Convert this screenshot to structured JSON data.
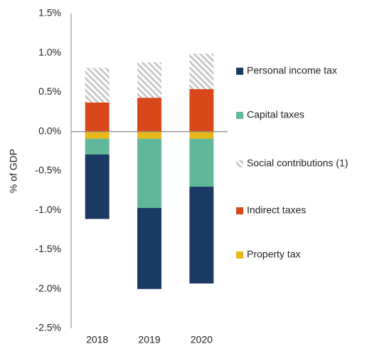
{
  "chart_data": {
    "type": "stacked_bar",
    "y_axis_label": "% of GDP",
    "categories": [
      "2018",
      "2019",
      "2020"
    ],
    "series": [
      {
        "name": "Personal income tax",
        "color": "#1b3a63",
        "values": [
          -0.82,
          -1.03,
          -1.23
        ]
      },
      {
        "name": "Capital taxes",
        "color": "#5fb89a",
        "values": [
          -0.2,
          -0.88,
          -0.61
        ]
      },
      {
        "name": "Social contributions (1)",
        "color": "#c8c8c8",
        "pattern": "hatch",
        "values": [
          0.44,
          0.45,
          0.45
        ]
      },
      {
        "name": "Indirect taxes",
        "color": "#d9481a",
        "values": [
          0.37,
          0.43,
          0.54
        ]
      },
      {
        "name": "Property tax",
        "color": "#e8b818",
        "values": [
          -0.09,
          -0.09,
          -0.09
        ]
      }
    ],
    "ylim": [
      -2.5,
      1.5
    ],
    "yticks": [
      {
        "value": 1.5,
        "label": "1.5%"
      },
      {
        "value": 1.0,
        "label": "1.0%"
      },
      {
        "value": 0.5,
        "label": "0.5%"
      },
      {
        "value": 0.0,
        "label": "0.0%"
      },
      {
        "value": -0.5,
        "label": "-0.5%"
      },
      {
        "value": -1.0,
        "label": "-1.0%"
      },
      {
        "value": -1.5,
        "label": "-1.5%"
      },
      {
        "value": -2.0,
        "label": "-2.0%"
      },
      {
        "value": -2.5,
        "label": "-2.5%"
      }
    ],
    "legend_position": "right"
  }
}
